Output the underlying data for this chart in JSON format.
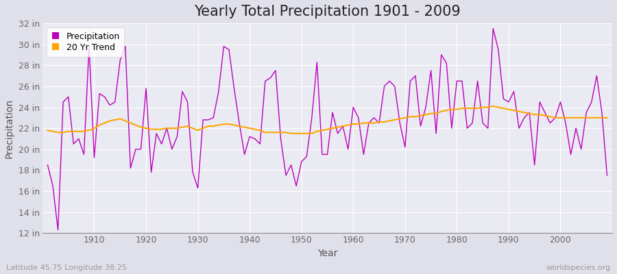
{
  "title": "Yearly Total Precipitation 1901 - 2009",
  "xlabel": "Year",
  "ylabel": "Precipitation",
  "lat_lon_label": "Latitude 45.75 Longitude 38.25",
  "watermark": "worldspecies.org",
  "years": [
    1901,
    1902,
    1903,
    1904,
    1905,
    1906,
    1907,
    1908,
    1909,
    1910,
    1911,
    1912,
    1913,
    1914,
    1915,
    1916,
    1917,
    1918,
    1919,
    1920,
    1921,
    1922,
    1923,
    1924,
    1925,
    1926,
    1927,
    1928,
    1929,
    1930,
    1931,
    1932,
    1933,
    1934,
    1935,
    1936,
    1937,
    1938,
    1939,
    1940,
    1941,
    1942,
    1943,
    1944,
    1945,
    1946,
    1947,
    1948,
    1949,
    1950,
    1951,
    1952,
    1953,
    1954,
    1955,
    1956,
    1957,
    1958,
    1959,
    1960,
    1961,
    1962,
    1963,
    1964,
    1965,
    1966,
    1967,
    1968,
    1969,
    1970,
    1971,
    1972,
    1973,
    1974,
    1975,
    1976,
    1977,
    1978,
    1979,
    1980,
    1981,
    1982,
    1983,
    1984,
    1985,
    1986,
    1987,
    1988,
    1989,
    1990,
    1991,
    1992,
    1993,
    1994,
    1995,
    1996,
    1997,
    1998,
    1999,
    2000,
    2001,
    2002,
    2003,
    2004,
    2005,
    2006,
    2007,
    2008,
    2009
  ],
  "precip": [
    18.5,
    16.5,
    12.3,
    24.5,
    25.0,
    20.5,
    21.0,
    19.5,
    29.8,
    19.2,
    25.3,
    25.0,
    24.2,
    24.5,
    28.5,
    29.8,
    18.2,
    20.0,
    20.0,
    25.8,
    17.8,
    21.5,
    20.5,
    22.0,
    20.0,
    21.2,
    25.5,
    24.5,
    17.8,
    16.3,
    22.8,
    22.8,
    23.0,
    25.5,
    29.8,
    29.5,
    25.8,
    22.5,
    19.5,
    21.2,
    21.0,
    20.5,
    26.5,
    26.8,
    27.5,
    21.0,
    17.5,
    18.5,
    16.5,
    18.8,
    19.3,
    23.0,
    28.3,
    19.5,
    19.5,
    23.5,
    21.5,
    22.2,
    20.0,
    24.0,
    23.0,
    19.5,
    22.5,
    23.0,
    22.5,
    26.0,
    26.5,
    26.0,
    22.5,
    20.2,
    26.5,
    27.0,
    22.2,
    24.0,
    27.5,
    21.5,
    29.0,
    28.2,
    22.0,
    26.5,
    26.5,
    22.0,
    22.5,
    26.5,
    22.5,
    22.0,
    31.5,
    29.5,
    24.8,
    24.5,
    25.5,
    22.0,
    23.0,
    23.5,
    18.5,
    24.5,
    23.5,
    22.5,
    23.0,
    24.5,
    22.5,
    19.5,
    22.0,
    20.0,
    23.5,
    24.5,
    27.0,
    23.5,
    17.5
  ],
  "trend": [
    21.8,
    21.7,
    21.6,
    21.6,
    21.7,
    21.7,
    21.7,
    21.7,
    21.8,
    22.0,
    22.3,
    22.5,
    22.7,
    22.8,
    22.9,
    22.7,
    22.5,
    22.3,
    22.1,
    22.0,
    21.9,
    21.9,
    21.9,
    22.0,
    22.0,
    22.0,
    22.1,
    22.2,
    22.0,
    21.8,
    22.0,
    22.2,
    22.2,
    22.3,
    22.4,
    22.4,
    22.3,
    22.2,
    22.1,
    22.0,
    21.9,
    21.8,
    21.6,
    21.6,
    21.6,
    21.6,
    21.6,
    21.5,
    21.5,
    21.5,
    21.5,
    21.5,
    21.7,
    21.8,
    21.9,
    22.0,
    22.1,
    22.2,
    22.3,
    22.4,
    22.4,
    22.5,
    22.5,
    22.5,
    22.6,
    22.6,
    22.7,
    22.8,
    22.9,
    23.0,
    23.1,
    23.1,
    23.2,
    23.3,
    23.4,
    23.4,
    23.6,
    23.7,
    23.8,
    23.8,
    23.9,
    23.9,
    23.9,
    23.9,
    24.0,
    24.0,
    24.1,
    24.0,
    23.9,
    23.8,
    23.7,
    23.6,
    23.5,
    23.4,
    23.3,
    23.3,
    23.2,
    23.1,
    23.0,
    23.0,
    23.0,
    23.0,
    23.0,
    23.0,
    23.0,
    23.0,
    23.0,
    23.0,
    23.0
  ],
  "precip_color": "#BB00BB",
  "trend_color": "#FFA500",
  "bg_color": "#E0E0EA",
  "plot_bg_color": "#EAEAF2",
  "ylim": [
    12,
    32
  ],
  "yticks": [
    12,
    14,
    16,
    18,
    20,
    22,
    24,
    26,
    28,
    30,
    32
  ],
  "grid_color": "#FFFFFF",
  "title_fontsize": 15,
  "axis_fontsize": 10,
  "tick_fontsize": 9,
  "legend_fontsize": 9
}
